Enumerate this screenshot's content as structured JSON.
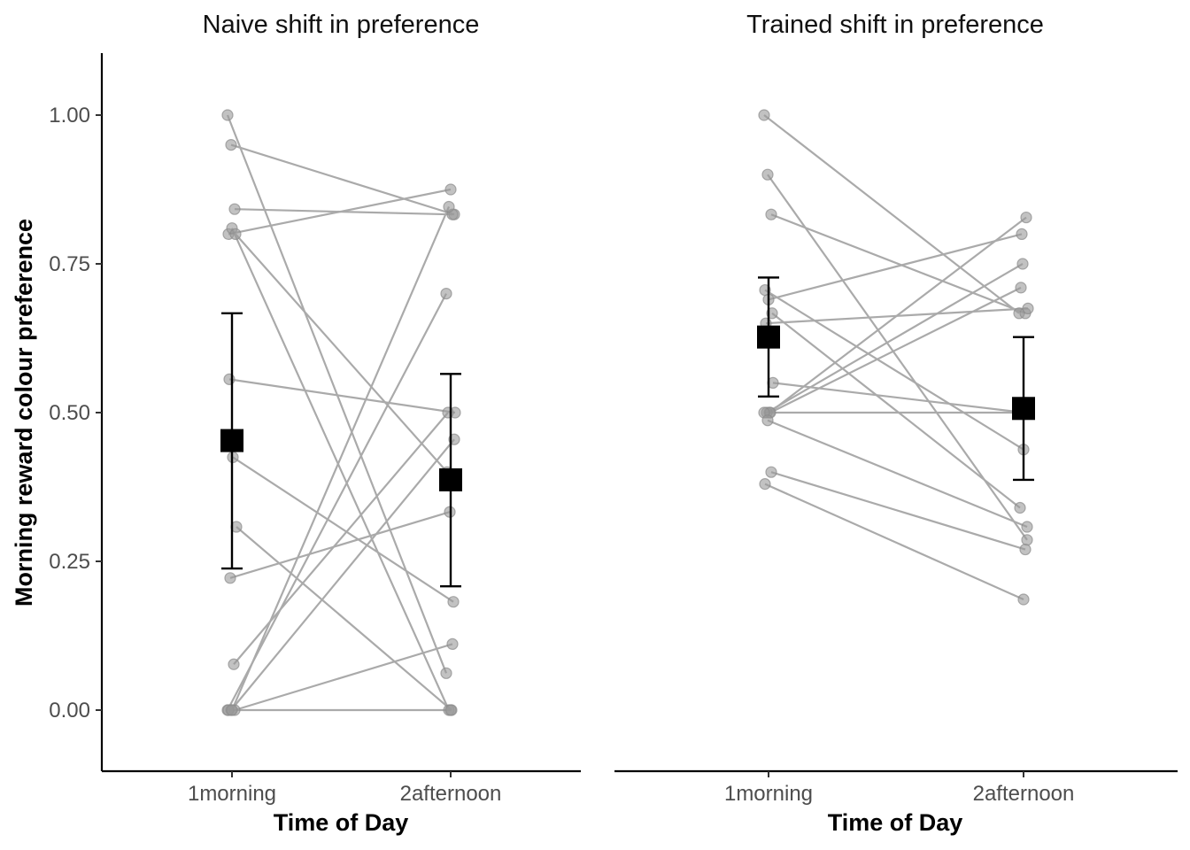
{
  "chart_data": [
    {
      "type": "scatter",
      "title": "Naive shift in preference",
      "xlabel": "Time of Day",
      "ylabel": "Morning reward colour preference",
      "categories": [
        "1morning",
        "2afternoon"
      ],
      "ylim": [
        -0.1,
        1.1
      ],
      "yticks": [
        0,
        0.25,
        0.5,
        0.75,
        1
      ],
      "ytick_labels": [
        "0.00",
        "0.25",
        "0.50",
        "0.75",
        "1.00"
      ],
      "paired_lines": true,
      "pairs": [
        [
          1.0,
          0.062
        ],
        [
          0.95,
          0.833
        ],
        [
          0.842,
          0.833
        ],
        [
          0.8,
          0.875
        ],
        [
          0.81,
          0.0
        ],
        [
          0.8,
          0.4
        ],
        [
          0.556,
          0.5
        ],
        [
          0.425,
          0.182
        ],
        [
          0.308,
          0.0
        ],
        [
          0.222,
          0.333
        ],
        [
          0.077,
          0.5
        ],
        [
          0.0,
          0.7
        ],
        [
          0.0,
          0.455
        ],
        [
          0.0,
          0.111
        ],
        [
          0.0,
          0.0
        ],
        [
          0.0,
          0.846
        ]
      ],
      "means": [
        0.453,
        0.387
      ],
      "error_low": [
        0.238,
        0.208
      ],
      "error_high": [
        0.667,
        0.565
      ],
      "point_color": "#999999",
      "line_color": "#aaaaaa",
      "mean_color": "#000000"
    },
    {
      "type": "scatter",
      "title": "Trained shift in preference",
      "xlabel": "Time of Day",
      "ylabel": "",
      "categories": [
        "1morning",
        "2afternoon"
      ],
      "ylim": [
        -0.1,
        1.1
      ],
      "paired_lines": true,
      "pairs": [
        [
          1.0,
          0.667
        ],
        [
          0.9,
          0.286
        ],
        [
          0.833,
          0.667
        ],
        [
          0.706,
          0.438
        ],
        [
          0.69,
          0.8
        ],
        [
          0.667,
          0.34
        ],
        [
          0.65,
          0.675
        ],
        [
          0.5,
          0.828
        ],
        [
          0.55,
          0.5
        ],
        [
          0.5,
          0.75
        ],
        [
          0.5,
          0.71
        ],
        [
          0.5,
          0.5
        ],
        [
          0.487,
          0.308
        ],
        [
          0.4,
          0.27
        ],
        [
          0.38,
          0.186
        ]
      ],
      "means": [
        0.627,
        0.507
      ],
      "error_low": [
        0.527,
        0.387
      ],
      "error_high": [
        0.727,
        0.627
      ],
      "point_color": "#999999",
      "line_color": "#aaaaaa",
      "mean_color": "#000000"
    }
  ]
}
